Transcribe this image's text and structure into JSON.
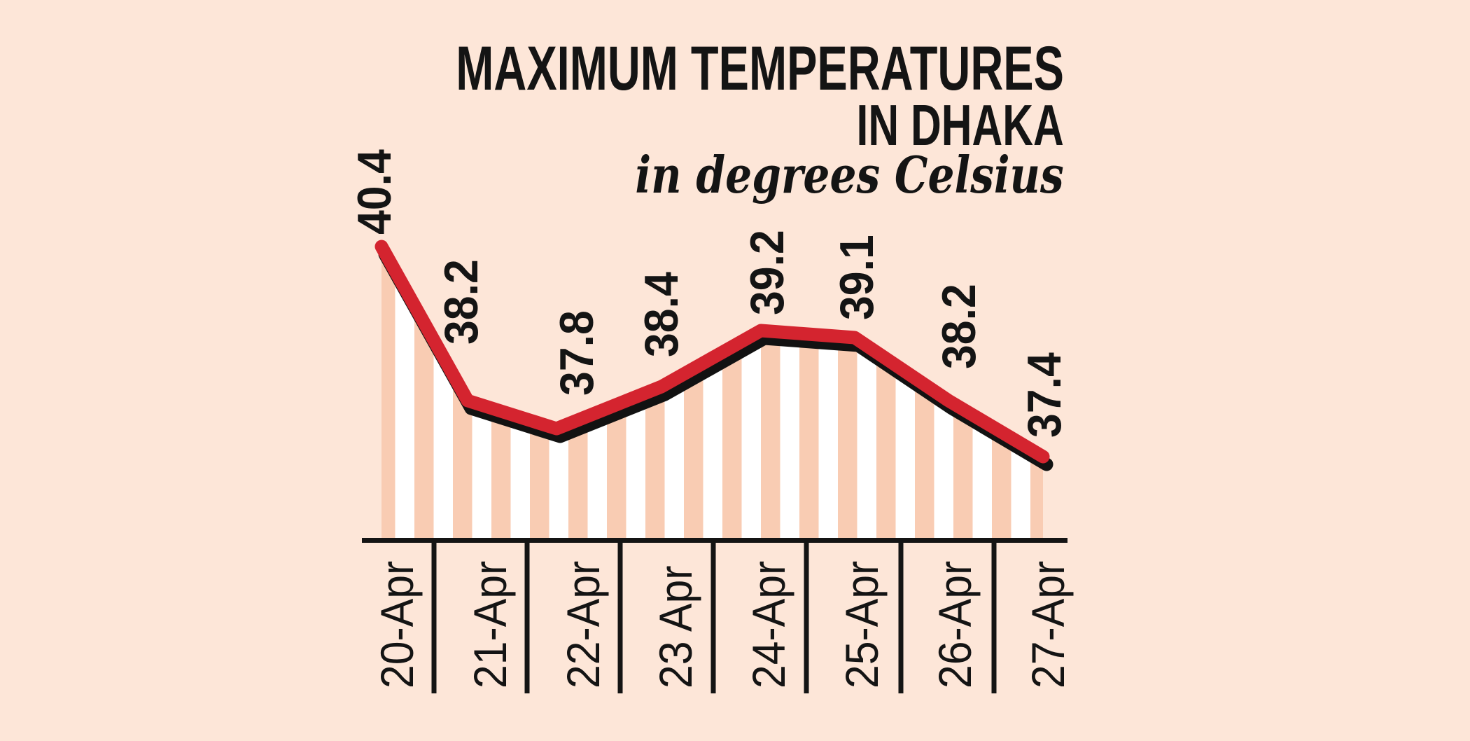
{
  "title": {
    "line1": "MAXIMUM TEMPERATURES",
    "line2": "IN DHAKA",
    "subtitle": "in degrees Celsius"
  },
  "chart_data": {
    "type": "line",
    "title": "MAXIMUM TEMPERATURES IN DHAKA",
    "subtitle": "in degrees Celsius",
    "unit": "degrees Celsius",
    "categories": [
      "20-Apr",
      "21-Apr",
      "22-Apr",
      "23 Apr",
      "24-Apr",
      "25-Apr",
      "26-Apr",
      "27-Apr"
    ],
    "values": [
      40.4,
      38.2,
      37.8,
      38.4,
      39.2,
      39.1,
      38.2,
      37.4
    ],
    "value_labels_shown": true,
    "x_labels_rotated": true,
    "legend": "none",
    "grid": false,
    "y_axis_shown": false,
    "colors": {
      "background": "#fde6d8",
      "stripe": "#f9ccb3",
      "stripe_alt": "#ffffff",
      "line": "#d4242f",
      "shadow": "#121212",
      "ink": "#141414"
    }
  }
}
